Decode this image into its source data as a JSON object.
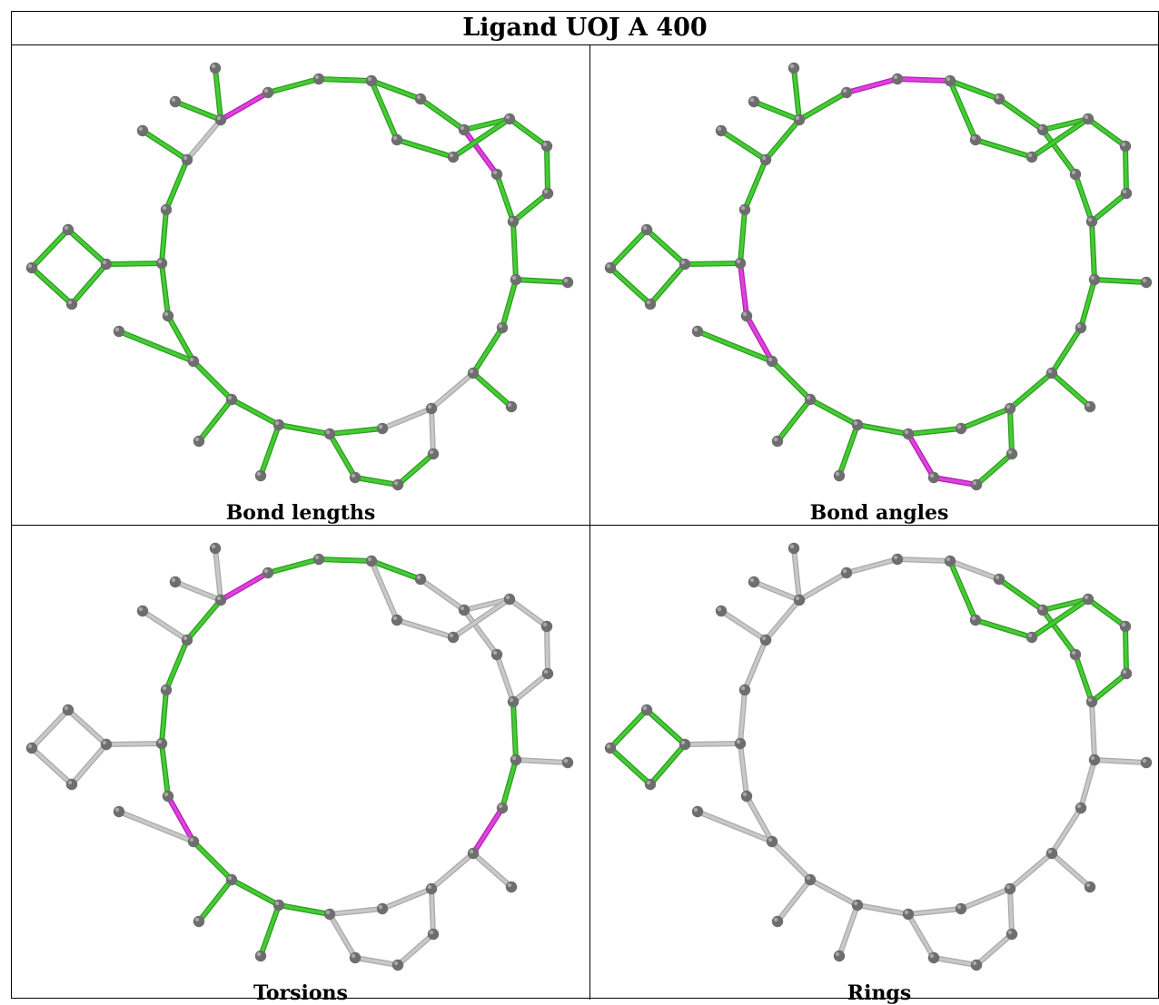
{
  "title": "Ligand UOJ A 400",
  "colors": {
    "ok": "#44cc33",
    "outlier": "#e040e0",
    "neutral": "#c8c8c8",
    "atom": "#6e6e6e"
  },
  "panels": [
    {
      "caption": "Bond lengths",
      "magenta": [
        "b9",
        "b20"
      ],
      "grey": [
        "b3",
        "b21",
        "b22",
        "b23",
        "b24",
        "b25"
      ]
    },
    {
      "caption": "Bond angles",
      "magenta": [
        "b6",
        "b7",
        "b16",
        "b17",
        "b30",
        "b31"
      ],
      "grey": []
    },
    {
      "caption": "Torsions",
      "magenta": [
        "b3",
        "b16",
        "b21"
      ],
      "grey": [
        "b0",
        "b1",
        "b2",
        "b10",
        "b11",
        "b12",
        "b13",
        "b14",
        "b15",
        "b26",
        "b27",
        "b28",
        "b29",
        "b30",
        "b31",
        "b32",
        "b33",
        "b34",
        "b35",
        "b36",
        "b37",
        "b38",
        "b39",
        "b40",
        "b41",
        "b42",
        "b43",
        "b44",
        "b45",
        "b46",
        "b47",
        "b48",
        "b49"
      ],
      "green": [
        "b4",
        "b5",
        "b6",
        "b7",
        "b8",
        "b9",
        "b17",
        "b18",
        "b19",
        "b20",
        "b22",
        "b23",
        "b24",
        "b25",
        "b16",
        "b21",
        "b3"
      ]
    },
    {
      "caption": "Rings",
      "magenta": [],
      "green": [
        "b7",
        "b8",
        "b9",
        "b10",
        "b11",
        "b12",
        "b13",
        "b14",
        "b15",
        "b16",
        "b26",
        "b27",
        "b28",
        "b29",
        "b30",
        "b31",
        "b32",
        "b33",
        "b34",
        "b35",
        "b36",
        "b37",
        "b38",
        "b39",
        "b40",
        "b41",
        "b42",
        "b43",
        "b44",
        "b45",
        "b46",
        "b47",
        "b48",
        "b49"
      ],
      "ringGreen": [
        "b10",
        "b11",
        "b12",
        "b13",
        "b14",
        "b15",
        "b16",
        "b17",
        "b18",
        "b19",
        "b44",
        "b45",
        "b46",
        "b47"
      ]
    }
  ]
}
